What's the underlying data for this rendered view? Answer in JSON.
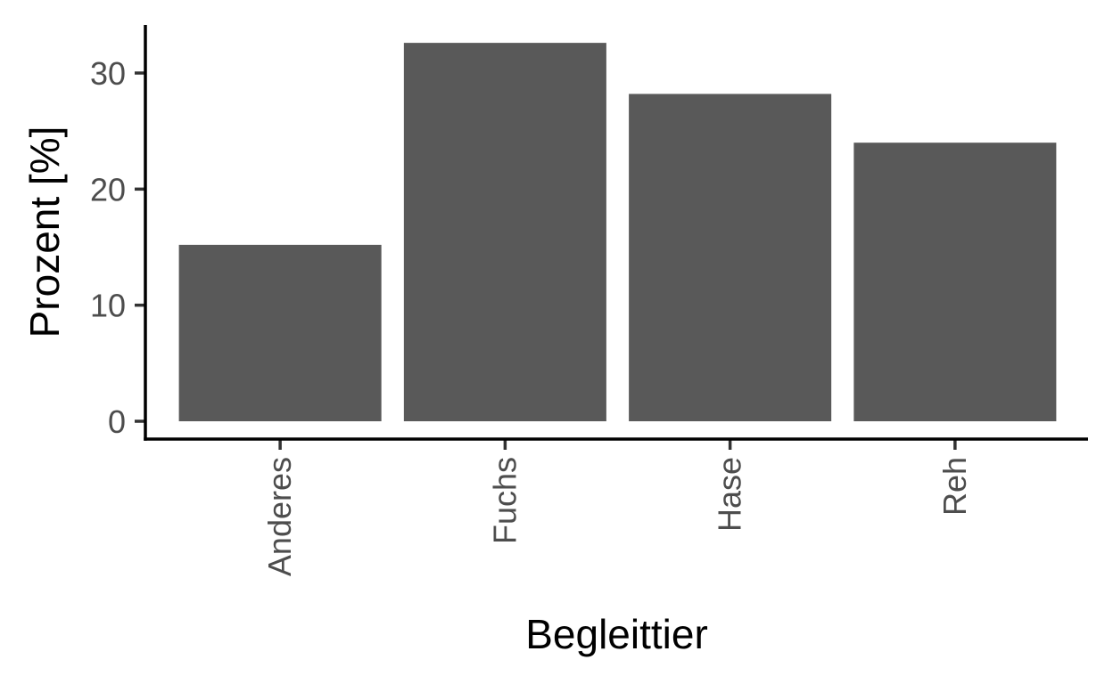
{
  "chart_data": {
    "type": "bar",
    "title": "",
    "xlabel": "Begleittier",
    "ylabel": "Prozent [%]",
    "categories": [
      "Anderes",
      "Fuchs",
      "Hase",
      "Reh"
    ],
    "values": [
      15.2,
      32.6,
      28.2,
      24.0
    ],
    "ylim": [
      0,
      34.2
    ],
    "yticks": [
      0,
      10,
      20,
      30
    ],
    "ytick_labels": [
      "0",
      "10",
      "20",
      "30"
    ],
    "grid": false,
    "legend": "none",
    "bar_color": "#595959",
    "axis_color": "#000000",
    "tick_label_color": "#4d4d4d",
    "xtick_rotation": -90
  }
}
